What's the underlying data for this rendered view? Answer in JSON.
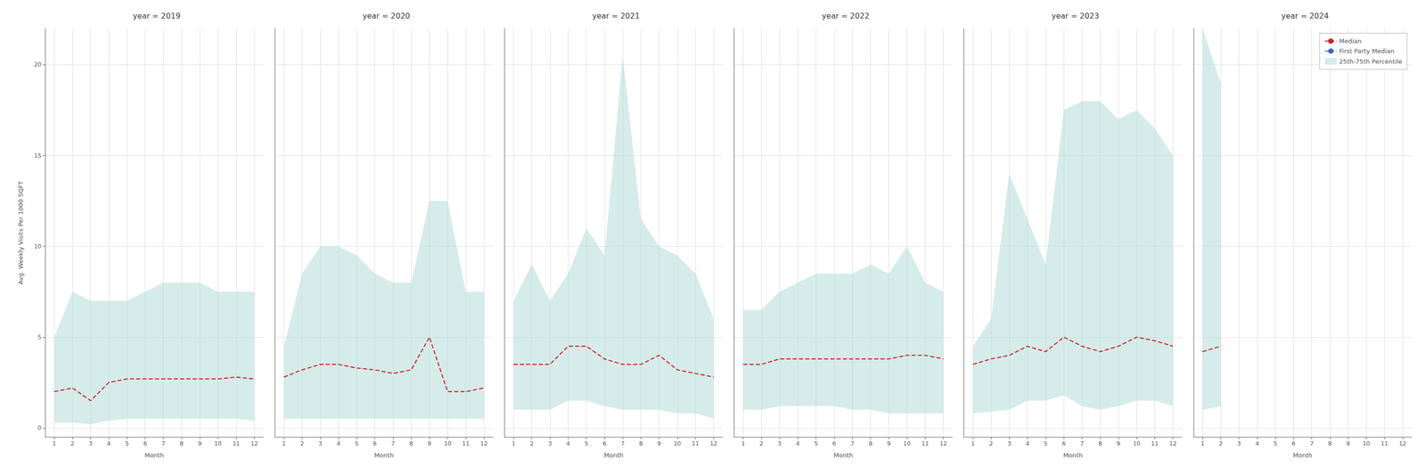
{
  "chart_data": [
    {
      "type": "line",
      "title": "year = 2019",
      "xlabel": "Month",
      "ylabel": "Avg. Weekly Visits Per 1000 SQFT",
      "x": [
        1,
        2,
        3,
        4,
        5,
        6,
        7,
        8,
        9,
        10,
        11,
        12
      ],
      "xlim": [
        0.5,
        12.5
      ],
      "xticks": [
        1,
        2,
        3,
        4,
        5,
        6,
        7,
        8,
        9,
        10,
        11,
        12
      ],
      "ylim": [
        -0.5,
        22
      ],
      "yticks": [
        0,
        5,
        10,
        15,
        20
      ],
      "grid": true,
      "series": [
        {
          "name": "25th-75th Percentile",
          "type": "band",
          "color": "#aed9d5",
          "low": [
            0.3,
            0.3,
            0.2,
            0.4,
            0.5,
            0.5,
            0.5,
            0.5,
            0.5,
            0.5,
            0.5,
            0.4
          ],
          "high": [
            5.0,
            7.5,
            7.0,
            7.0,
            7.0,
            7.5,
            8.0,
            8.0,
            8.0,
            7.5,
            7.5,
            7.5
          ]
        },
        {
          "name": "Median",
          "type": "line",
          "color": "#cc2222",
          "line_style": "dashed",
          "values": [
            2.0,
            2.2,
            1.5,
            2.5,
            2.7,
            2.7,
            2.7,
            2.7,
            2.7,
            2.7,
            2.8,
            2.7
          ]
        }
      ]
    },
    {
      "type": "line",
      "title": "year = 2020",
      "xlabel": "Month",
      "x": [
        1,
        2,
        3,
        4,
        5,
        6,
        7,
        8,
        9,
        10,
        11,
        12
      ],
      "xlim": [
        0.5,
        12.5
      ],
      "xticks": [
        1,
        2,
        3,
        4,
        5,
        6,
        7,
        8,
        9,
        10,
        11,
        12
      ],
      "ylim": [
        -0.5,
        22
      ],
      "yticks": [
        0,
        5,
        10,
        15,
        20
      ],
      "grid": true,
      "tick_labels": "x",
      "series": [
        {
          "name": "25th-75th Percentile",
          "type": "band",
          "color": "#aed9d5",
          "low": [
            0.5,
            0.5,
            0.5,
            0.5,
            0.5,
            0.5,
            0.5,
            0.5,
            0.5,
            0.5,
            0.5,
            0.5
          ],
          "high": [
            4.5,
            8.5,
            10.0,
            10.0,
            9.5,
            8.5,
            8.0,
            8.0,
            12.5,
            12.5,
            7.5,
            7.5
          ]
        },
        {
          "name": "Median",
          "type": "line",
          "color": "#cc2222",
          "line_style": "dashed",
          "values": [
            2.8,
            3.2,
            3.5,
            3.5,
            3.3,
            3.2,
            3.0,
            3.2,
            5.0,
            2.0,
            2.0,
            2.2
          ]
        }
      ]
    },
    {
      "type": "line",
      "title": "year = 2021",
      "xlabel": "Month",
      "x": [
        1,
        2,
        3,
        4,
        5,
        6,
        7,
        8,
        9,
        10,
        11,
        12
      ],
      "xlim": [
        0.5,
        12.5
      ],
      "xticks": [
        1,
        2,
        3,
        4,
        5,
        6,
        7,
        8,
        9,
        10,
        11,
        12
      ],
      "ylim": [
        -0.5,
        22
      ],
      "yticks": [
        0,
        5,
        10,
        15,
        20
      ],
      "grid": true,
      "tick_labels": "x",
      "series": [
        {
          "name": "25th-75th Percentile",
          "type": "band",
          "color": "#aed9d5",
          "low": [
            1.0,
            1.0,
            1.0,
            1.5,
            1.5,
            1.2,
            1.0,
            1.0,
            1.0,
            0.8,
            0.8,
            0.5
          ],
          "high": [
            7.0,
            9.0,
            7.0,
            8.5,
            11.0,
            9.5,
            20.5,
            11.5,
            10.0,
            9.5,
            8.5,
            6.0
          ]
        },
        {
          "name": "Median",
          "type": "line",
          "color": "#cc2222",
          "line_style": "dashed",
          "values": [
            3.5,
            3.5,
            3.5,
            4.5,
            4.5,
            3.8,
            3.5,
            3.5,
            4.0,
            3.2,
            3.0,
            2.8
          ]
        }
      ]
    },
    {
      "type": "line",
      "title": "year = 2022",
      "xlabel": "Month",
      "x": [
        1,
        2,
        3,
        4,
        5,
        6,
        7,
        8,
        9,
        10,
        11,
        12
      ],
      "xlim": [
        0.5,
        12.5
      ],
      "xticks": [
        1,
        2,
        3,
        4,
        5,
        6,
        7,
        8,
        9,
        10,
        11,
        12
      ],
      "ylim": [
        -0.5,
        22
      ],
      "yticks": [
        0,
        5,
        10,
        15,
        20
      ],
      "grid": true,
      "tick_labels": "x",
      "series": [
        {
          "name": "25th-75th Percentile",
          "type": "band",
          "color": "#aed9d5",
          "low": [
            1.0,
            1.0,
            1.2,
            1.2,
            1.2,
            1.2,
            1.0,
            1.0,
            0.8,
            0.8,
            0.8,
            0.8
          ],
          "high": [
            6.5,
            6.5,
            7.5,
            8.0,
            8.5,
            8.5,
            8.5,
            9.0,
            8.5,
            10.0,
            8.0,
            7.5
          ]
        },
        {
          "name": "Median",
          "type": "line",
          "color": "#cc2222",
          "line_style": "dashed",
          "values": [
            3.5,
            3.5,
            3.8,
            3.8,
            3.8,
            3.8,
            3.8,
            3.8,
            3.8,
            4.0,
            4.0,
            3.8
          ]
        }
      ]
    },
    {
      "type": "line",
      "title": "year = 2023",
      "xlabel": "Month",
      "x": [
        1,
        2,
        3,
        4,
        5,
        6,
        7,
        8,
        9,
        10,
        11,
        12
      ],
      "xlim": [
        0.5,
        12.5
      ],
      "xticks": [
        1,
        2,
        3,
        4,
        5,
        6,
        7,
        8,
        9,
        10,
        11,
        12
      ],
      "ylim": [
        -0.5,
        22
      ],
      "yticks": [
        0,
        5,
        10,
        15,
        20
      ],
      "grid": true,
      "tick_labels": "x",
      "series": [
        {
          "name": "25th-75th Percentile",
          "type": "band",
          "color": "#aed9d5",
          "low": [
            0.8,
            0.9,
            1.0,
            1.5,
            1.5,
            1.8,
            1.2,
            1.0,
            1.2,
            1.5,
            1.5,
            1.2
          ],
          "high": [
            4.5,
            6.0,
            14.0,
            11.5,
            9.0,
            17.5,
            18.0,
            18.0,
            17.0,
            17.5,
            16.5,
            15.0
          ]
        },
        {
          "name": "Median",
          "type": "line",
          "color": "#cc2222",
          "line_style": "dashed",
          "values": [
            3.5,
            3.8,
            4.0,
            4.5,
            4.2,
            5.0,
            4.5,
            4.2,
            4.5,
            5.0,
            4.8,
            4.5
          ]
        }
      ]
    },
    {
      "type": "line",
      "title": "year = 2024",
      "xlabel": "Month",
      "x": [
        1,
        2
      ],
      "xlim": [
        0.5,
        12.5
      ],
      "xticks": [
        1,
        2,
        3,
        4,
        5,
        6,
        7,
        8,
        9,
        10,
        11,
        12
      ],
      "ylim": [
        -0.5,
        22
      ],
      "yticks": [
        0,
        5,
        10,
        15,
        20
      ],
      "grid": true,
      "tick_labels": "x",
      "legend": "upper right",
      "series": [
        {
          "name": "25th-75th Percentile",
          "type": "band",
          "color": "#aed9d5",
          "low": [
            1.0,
            1.2
          ],
          "high": [
            22.0,
            19.0
          ]
        },
        {
          "name": "Median",
          "type": "line",
          "color": "#cc2222",
          "line_style": "dashed",
          "values": [
            4.2,
            4.5
          ]
        },
        {
          "name": "First Party Median",
          "type": "line",
          "color": "#4466bb",
          "line_style": "dashed",
          "values": [
            null,
            null
          ]
        }
      ]
    }
  ]
}
